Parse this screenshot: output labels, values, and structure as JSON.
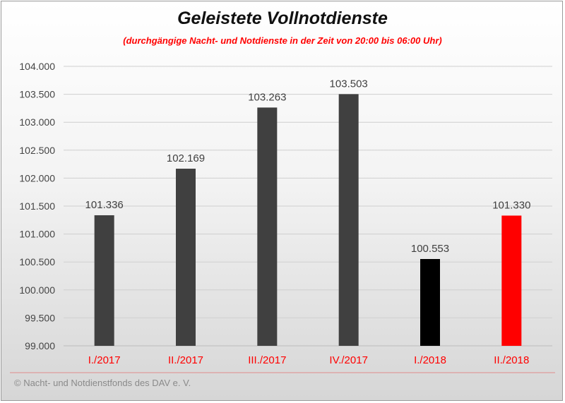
{
  "chart_data": {
    "type": "bar",
    "title": "Geleistete  Vollnotdienste",
    "subtitle": "(durchgängige Nacht- und Notdienste in der Zeit von 20:00 bis 06:00 Uhr)",
    "categories": [
      "I./2017",
      "II./2017",
      "III./2017",
      "IV./2017",
      "I./2018",
      "II./2018"
    ],
    "values": [
      101336,
      102169,
      103263,
      103503,
      100553,
      101330
    ],
    "value_labels": [
      "101.336",
      "102.169",
      "103.263",
      "103.503",
      "100.553",
      "101.330"
    ],
    "bar_colors": [
      "#404040",
      "#404040",
      "#404040",
      "#404040",
      "#000000",
      "#ff0000"
    ],
    "ylim": [
      99000,
      104000
    ],
    "yticks": [
      99000,
      99500,
      100000,
      100500,
      101000,
      101500,
      102000,
      102500,
      103000,
      103500,
      104000
    ],
    "ytick_labels": [
      "99.000",
      "99.500",
      "100.000",
      "100.500",
      "101.000",
      "101.500",
      "102.000",
      "102.500",
      "103.000",
      "103.500",
      "104.000"
    ],
    "category_label_color": "#ff0000",
    "grid": true,
    "legend": "none"
  },
  "footer": "© Nacht- und Notdienstfonds  des DAV e. V."
}
